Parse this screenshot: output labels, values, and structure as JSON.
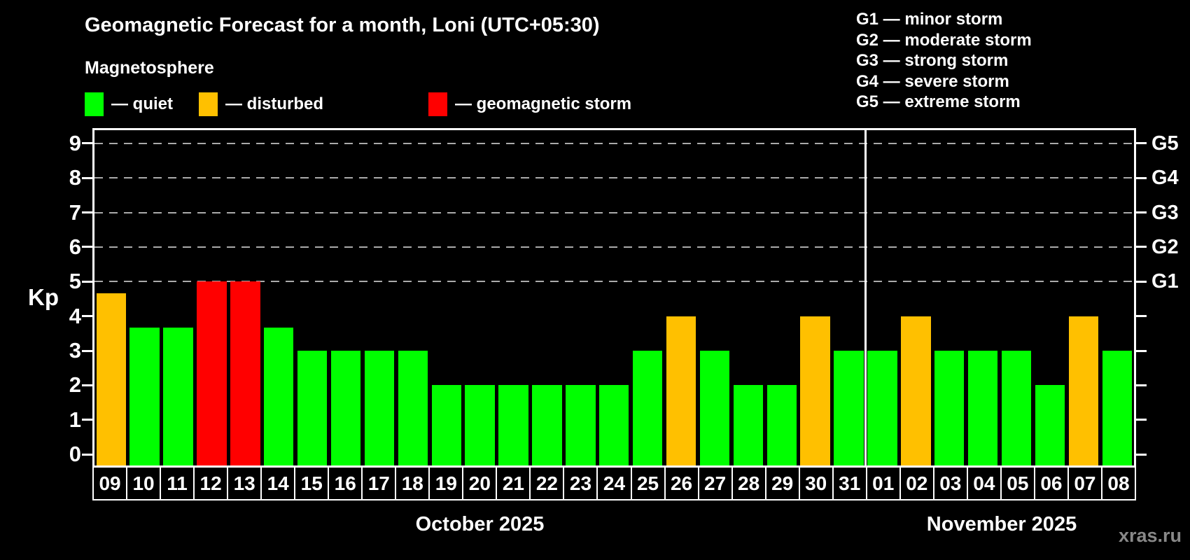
{
  "title": "Geomagnetic Forecast for a month, Loni (UTC+05:30)",
  "subtitle": "Magnetosphere",
  "legend": [
    {
      "key": "quiet",
      "label": "— quiet",
      "color": "#00ff00"
    },
    {
      "key": "disturbed",
      "label": "— disturbed",
      "color": "#ffc000"
    },
    {
      "key": "storm",
      "label": "— geomagnetic storm",
      "color": "#ff0000"
    }
  ],
  "g_legend": [
    "G1 — minor storm",
    "G2 — moderate storm",
    "G3 — strong storm",
    "G4 — severe storm",
    "G5 — extreme storm"
  ],
  "watermark": "xras.ru",
  "chart_data": {
    "type": "bar",
    "title": "Geomagnetic Forecast for a month, Loni (UTC+05:30)",
    "ylabel": "Kp",
    "ylim": [
      -0.32,
      9.38
    ],
    "yticks": [
      0,
      1,
      2,
      3,
      4,
      5,
      6,
      7,
      8,
      9
    ],
    "gridlines": [
      5,
      6,
      7,
      8,
      9
    ],
    "grid": "dashed-horizontal",
    "legend_position": "top",
    "right_axis": [
      {
        "value": 5,
        "label": "G1"
      },
      {
        "value": 6,
        "label": "G2"
      },
      {
        "value": 7,
        "label": "G3"
      },
      {
        "value": 8,
        "label": "G4"
      },
      {
        "value": 9,
        "label": "G5"
      }
    ],
    "status_colors": {
      "quiet": "#00ff00",
      "disturbed": "#ffc000",
      "storm": "#ff0000"
    },
    "months": [
      {
        "label": "October 2025",
        "days": 23
      },
      {
        "label": "November 2025",
        "days": 8
      }
    ],
    "bars": [
      {
        "date": "09",
        "month": "October 2025",
        "kp": 4.67,
        "status": "disturbed"
      },
      {
        "date": "10",
        "month": "October 2025",
        "kp": 3.67,
        "status": "quiet"
      },
      {
        "date": "11",
        "month": "October 2025",
        "kp": 3.67,
        "status": "quiet"
      },
      {
        "date": "12",
        "month": "October 2025",
        "kp": 5,
        "status": "storm"
      },
      {
        "date": "13",
        "month": "October 2025",
        "kp": 5,
        "status": "storm"
      },
      {
        "date": "14",
        "month": "October 2025",
        "kp": 3.67,
        "status": "quiet"
      },
      {
        "date": "15",
        "month": "October 2025",
        "kp": 3,
        "status": "quiet"
      },
      {
        "date": "16",
        "month": "October 2025",
        "kp": 3,
        "status": "quiet"
      },
      {
        "date": "17",
        "month": "October 2025",
        "kp": 3,
        "status": "quiet"
      },
      {
        "date": "18",
        "month": "October 2025",
        "kp": 3,
        "status": "quiet"
      },
      {
        "date": "19",
        "month": "October 2025",
        "kp": 2,
        "status": "quiet"
      },
      {
        "date": "20",
        "month": "October 2025",
        "kp": 2,
        "status": "quiet"
      },
      {
        "date": "21",
        "month": "October 2025",
        "kp": 2,
        "status": "quiet"
      },
      {
        "date": "22",
        "month": "October 2025",
        "kp": 2,
        "status": "quiet"
      },
      {
        "date": "23",
        "month": "October 2025",
        "kp": 2,
        "status": "quiet"
      },
      {
        "date": "24",
        "month": "October 2025",
        "kp": 2,
        "status": "quiet"
      },
      {
        "date": "25",
        "month": "October 2025",
        "kp": 3,
        "status": "quiet"
      },
      {
        "date": "26",
        "month": "October 2025",
        "kp": 4,
        "status": "disturbed"
      },
      {
        "date": "27",
        "month": "October 2025",
        "kp": 3,
        "status": "quiet"
      },
      {
        "date": "28",
        "month": "October 2025",
        "kp": 2,
        "status": "quiet"
      },
      {
        "date": "29",
        "month": "October 2025",
        "kp": 2,
        "status": "quiet"
      },
      {
        "date": "30",
        "month": "October 2025",
        "kp": 4,
        "status": "disturbed"
      },
      {
        "date": "31",
        "month": "October 2025",
        "kp": 3,
        "status": "quiet"
      },
      {
        "date": "01",
        "month": "November 2025",
        "kp": 3,
        "status": "quiet"
      },
      {
        "date": "02",
        "month": "November 2025",
        "kp": 4,
        "status": "disturbed"
      },
      {
        "date": "03",
        "month": "November 2025",
        "kp": 3,
        "status": "quiet"
      },
      {
        "date": "04",
        "month": "November 2025",
        "kp": 3,
        "status": "quiet"
      },
      {
        "date": "05",
        "month": "November 2025",
        "kp": 3,
        "status": "quiet"
      },
      {
        "date": "06",
        "month": "November 2025",
        "kp": 2,
        "status": "quiet"
      },
      {
        "date": "07",
        "month": "November 2025",
        "kp": 4,
        "status": "disturbed"
      },
      {
        "date": "08",
        "month": "November 2025",
        "kp": 3,
        "status": "quiet"
      }
    ]
  }
}
